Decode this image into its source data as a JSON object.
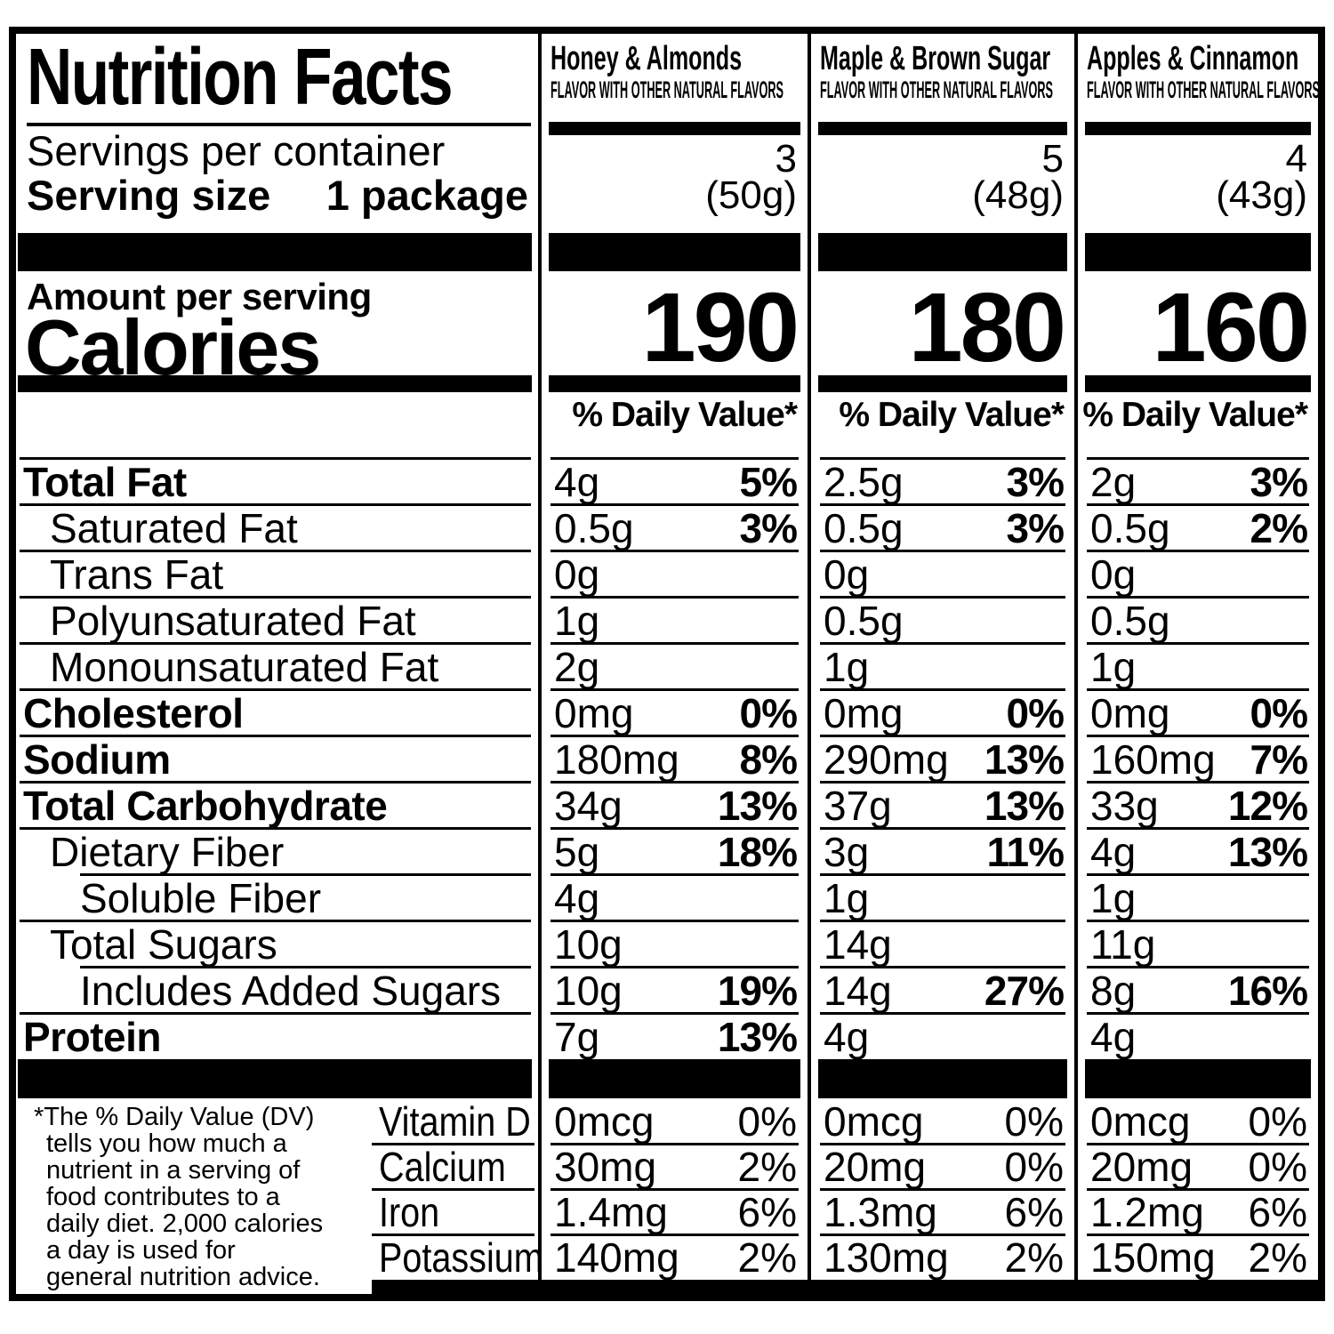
{
  "header": {
    "title": "Nutrition Facts",
    "servings_per_container_label": "Servings per container",
    "serving_size_label": "Serving size",
    "serving_size_value": "1 package",
    "amount_per_serving_label": "Amount per serving",
    "calories_label": "Calories",
    "daily_value_heading": "% Daily Value*"
  },
  "flavors": [
    {
      "name": "Honey & Almonds",
      "subtitle": "FLAVOR WITH OTHER NATURAL FLAVORS",
      "servings_per_container": "3",
      "serving_size_weight": "(50g)",
      "calories": "190"
    },
    {
      "name": "Maple & Brown Sugar",
      "subtitle": "FLAVOR WITH OTHER NATURAL FLAVORS",
      "servings_per_container": "5",
      "serving_size_weight": "(48g)",
      "calories": "180"
    },
    {
      "name": "Apples & Cinnamon",
      "subtitle": "FLAVOR WITH OTHER NATURAL FLAVORS",
      "servings_per_container": "4",
      "serving_size_weight": "(43g)",
      "calories": "160"
    }
  ],
  "nutrients": [
    {
      "label": "Total Fat",
      "values": [
        {
          "amount": "4g",
          "dv": "5%"
        },
        {
          "amount": "2.5g",
          "dv": "3%"
        },
        {
          "amount": "2g",
          "dv": "3%"
        }
      ]
    },
    {
      "label": "Saturated Fat",
      "values": [
        {
          "amount": "0.5g",
          "dv": "3%"
        },
        {
          "amount": "0.5g",
          "dv": "3%"
        },
        {
          "amount": "0.5g",
          "dv": "2%"
        }
      ]
    },
    {
      "label": "Trans Fat",
      "values": [
        {
          "amount": "0g",
          "dv": ""
        },
        {
          "amount": "0g",
          "dv": ""
        },
        {
          "amount": "0g",
          "dv": ""
        }
      ]
    },
    {
      "label": "Polyunsaturated Fat",
      "values": [
        {
          "amount": "1g",
          "dv": ""
        },
        {
          "amount": "0.5g",
          "dv": ""
        },
        {
          "amount": "0.5g",
          "dv": ""
        }
      ]
    },
    {
      "label": "Monounsaturated Fat",
      "values": [
        {
          "amount": "2g",
          "dv": ""
        },
        {
          "amount": "1g",
          "dv": ""
        },
        {
          "amount": "1g",
          "dv": ""
        }
      ]
    },
    {
      "label": "Cholesterol",
      "values": [
        {
          "amount": "0mg",
          "dv": "0%"
        },
        {
          "amount": "0mg",
          "dv": "0%"
        },
        {
          "amount": "0mg",
          "dv": "0%"
        }
      ]
    },
    {
      "label": "Sodium",
      "values": [
        {
          "amount": "180mg",
          "dv": "8%"
        },
        {
          "amount": "290mg",
          "dv": "13%"
        },
        {
          "amount": "160mg",
          "dv": "7%"
        }
      ]
    },
    {
      "label": "Total Carbohydrate",
      "values": [
        {
          "amount": "34g",
          "dv": "13%"
        },
        {
          "amount": "37g",
          "dv": "13%"
        },
        {
          "amount": "33g",
          "dv": "12%"
        }
      ]
    },
    {
      "label": "Dietary Fiber",
      "values": [
        {
          "amount": "5g",
          "dv": "18%"
        },
        {
          "amount": "3g",
          "dv": "11%"
        },
        {
          "amount": "4g",
          "dv": "13%"
        }
      ]
    },
    {
      "label": "Soluble Fiber",
      "values": [
        {
          "amount": "4g",
          "dv": ""
        },
        {
          "amount": "1g",
          "dv": ""
        },
        {
          "amount": "1g",
          "dv": ""
        }
      ]
    },
    {
      "label": "Total Sugars",
      "values": [
        {
          "amount": "10g",
          "dv": ""
        },
        {
          "amount": "14g",
          "dv": ""
        },
        {
          "amount": "11g",
          "dv": ""
        }
      ]
    },
    {
      "label": "Includes Added Sugars",
      "values": [
        {
          "amount": "10g",
          "dv": "19%"
        },
        {
          "amount": "14g",
          "dv": "27%"
        },
        {
          "amount": "8g",
          "dv": "16%"
        }
      ]
    },
    {
      "label": "Protein",
      "values": [
        {
          "amount": "7g",
          "dv": "13%"
        },
        {
          "amount": "4g",
          "dv": ""
        },
        {
          "amount": "4g",
          "dv": ""
        }
      ]
    }
  ],
  "vitamins": [
    {
      "label": "Vitamin D",
      "values": [
        {
          "amount": "0mcg",
          "dv": "0%"
        },
        {
          "amount": "0mcg",
          "dv": "0%"
        },
        {
          "amount": "0mcg",
          "dv": "0%"
        }
      ]
    },
    {
      "label": "Calcium",
      "values": [
        {
          "amount": "30mg",
          "dv": "2%"
        },
        {
          "amount": "20mg",
          "dv": "0%"
        },
        {
          "amount": "20mg",
          "dv": "0%"
        }
      ]
    },
    {
      "label": "Iron",
      "values": [
        {
          "amount": "1.4mg",
          "dv": "6%"
        },
        {
          "amount": "1.3mg",
          "dv": "6%"
        },
        {
          "amount": "1.2mg",
          "dv": "6%"
        }
      ]
    },
    {
      "label": "Potassium",
      "values": [
        {
          "amount": "140mg",
          "dv": "2%"
        },
        {
          "amount": "130mg",
          "dv": "2%"
        },
        {
          "amount": "150mg",
          "dv": "2%"
        }
      ]
    }
  ],
  "footnote": "*The % Daily Value (DV)\ntells you how much a\nnutrient in a serving of\nfood contributes to a\ndaily diet. 2,000 calories\na day is used for\ngeneral nutrition advice.",
  "colors": {
    "ink": "#000000",
    "paper": "#ffffff"
  }
}
